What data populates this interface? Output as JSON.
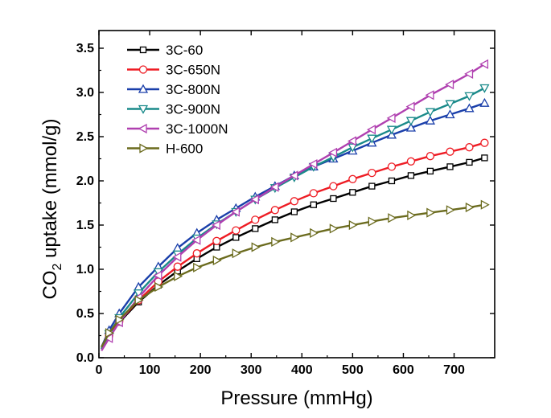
{
  "chart_data": {
    "type": "line",
    "xlabel": "Pressure (mmHg)",
    "ylabel_main": "CO",
    "ylabel_sub": "2",
    "ylabel_rest": " uptake (mmol/g)",
    "xlim": [
      0,
      780
    ],
    "ylim": [
      0,
      3.7
    ],
    "xticks": [
      0,
      100,
      200,
      300,
      400,
      500,
      600,
      700
    ],
    "yticks": [
      0.0,
      0.5,
      1.0,
      1.5,
      2.0,
      2.5,
      3.0,
      3.5
    ],
    "ytick_labels": [
      "0.0",
      "0.5",
      "1.0",
      "1.5",
      "2.0",
      "2.5",
      "3.0",
      "3.5"
    ],
    "x": [
      5,
      20,
      40,
      78,
      117,
      155,
      193,
      232,
      270,
      308,
      347,
      385,
      423,
      462,
      500,
      538,
      577,
      615,
      653,
      692,
      730,
      760
    ],
    "legend_position": "top-left",
    "series": [
      {
        "name": "3C-60",
        "color": "#000000",
        "marker": "square",
        "values": [
          0.1,
          0.25,
          0.4,
          0.63,
          0.82,
          0.98,
          1.12,
          1.25,
          1.36,
          1.46,
          1.56,
          1.65,
          1.73,
          1.8,
          1.87,
          1.94,
          2.0,
          2.06,
          2.11,
          2.16,
          2.21,
          2.26
        ]
      },
      {
        "name": "3C-650N",
        "color": "#ee1c24",
        "marker": "circle",
        "values": [
          0.1,
          0.25,
          0.41,
          0.65,
          0.86,
          1.03,
          1.18,
          1.32,
          1.44,
          1.56,
          1.67,
          1.77,
          1.86,
          1.94,
          2.02,
          2.09,
          2.16,
          2.22,
          2.28,
          2.33,
          2.38,
          2.43
        ]
      },
      {
        "name": "3C-800N",
        "color": "#1a3faa",
        "marker": "triangle-up",
        "values": [
          0.12,
          0.31,
          0.5,
          0.8,
          1.03,
          1.24,
          1.41,
          1.56,
          1.69,
          1.82,
          1.94,
          2.06,
          2.16,
          2.25,
          2.34,
          2.43,
          2.52,
          2.6,
          2.68,
          2.75,
          2.82,
          2.88
        ]
      },
      {
        "name": "3C-900N",
        "color": "#1a8a8a",
        "marker": "triangle-down",
        "values": [
          0.1,
          0.27,
          0.45,
          0.73,
          0.97,
          1.17,
          1.35,
          1.51,
          1.65,
          1.79,
          1.92,
          2.04,
          2.16,
          2.27,
          2.38,
          2.48,
          2.58,
          2.68,
          2.78,
          2.87,
          2.96,
          3.05
        ]
      },
      {
        "name": "3C-1000N",
        "color": "#b040b0",
        "marker": "triangle-left",
        "values": [
          0.08,
          0.22,
          0.4,
          0.68,
          0.93,
          1.14,
          1.33,
          1.5,
          1.65,
          1.79,
          1.93,
          2.06,
          2.19,
          2.32,
          2.45,
          2.58,
          2.71,
          2.84,
          2.97,
          3.09,
          3.21,
          3.32
        ]
      },
      {
        "name": "H-600",
        "color": "#6b6b1e",
        "marker": "triangle-right",
        "values": [
          0.12,
          0.28,
          0.43,
          0.65,
          0.8,
          0.92,
          1.02,
          1.1,
          1.18,
          1.25,
          1.31,
          1.36,
          1.41,
          1.46,
          1.5,
          1.54,
          1.58,
          1.61,
          1.64,
          1.67,
          1.7,
          1.73
        ]
      }
    ]
  }
}
